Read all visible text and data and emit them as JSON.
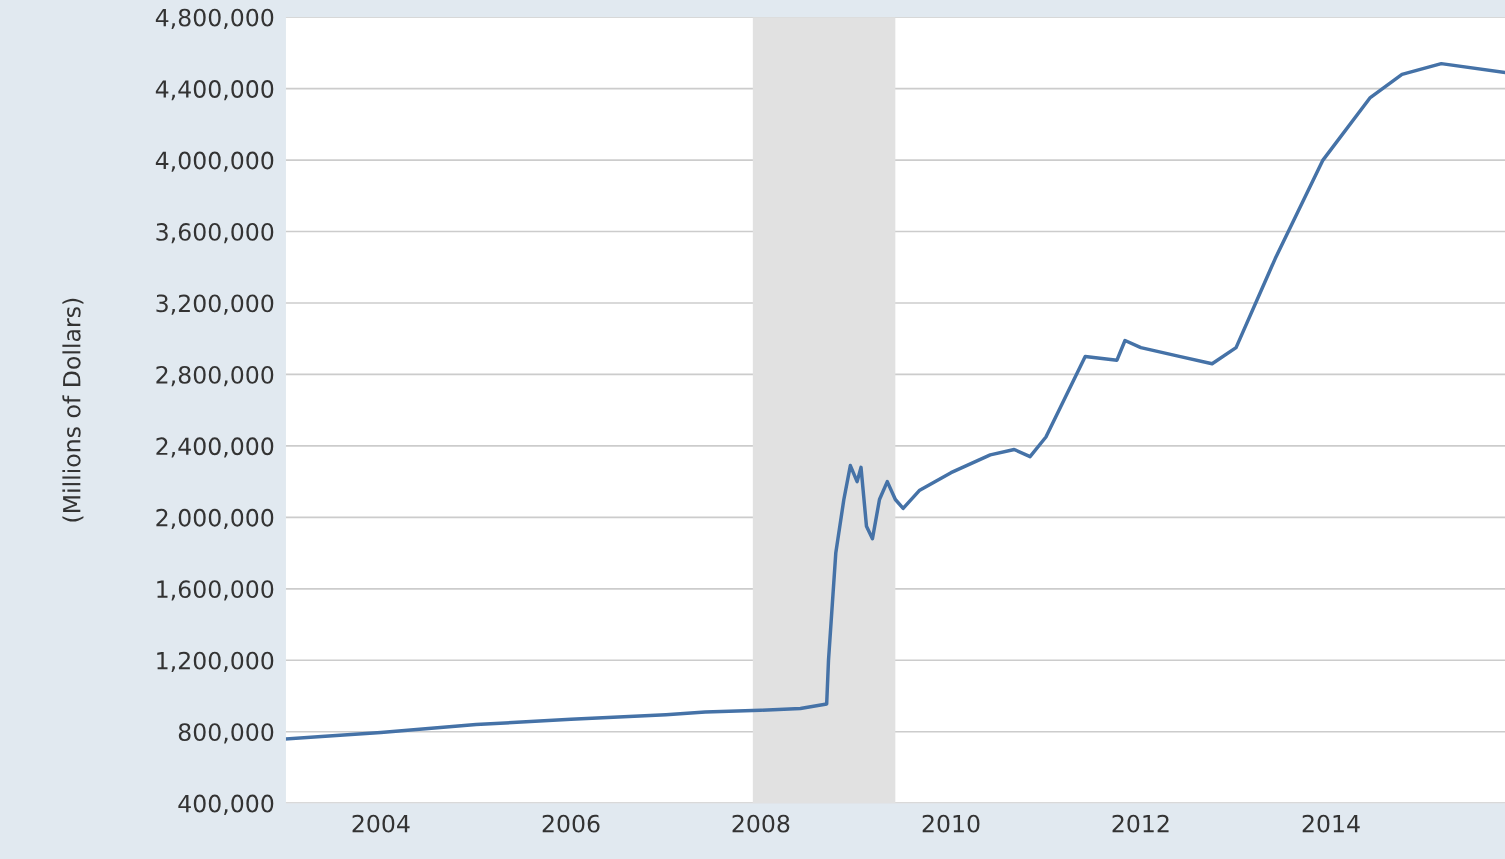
{
  "chart_data": {
    "type": "line",
    "ylabel": "(Millions of Dollars)",
    "x": [
      "2003-01",
      "2003-06",
      "2004-01",
      "2005-01",
      "2006-01",
      "2007-01",
      "2007-06",
      "2008-01",
      "2008-06",
      "2008-09-10",
      "2008-09-17",
      "2008-10-15",
      "2008-11-15",
      "2008-12-10",
      "2009-01-05",
      "2009-01-20",
      "2009-02-10",
      "2009-03-05",
      "2009-04-01",
      "2009-05-01",
      "2009-06-01",
      "2009-07-01",
      "2009-09-01",
      "2010-01",
      "2010-06",
      "2010-09",
      "2010-11",
      "2011-01",
      "2011-06",
      "2011-10",
      "2011-11",
      "2012-01",
      "2012-06",
      "2012-10",
      "2013-01",
      "2013-06",
      "2013-12",
      "2014-06",
      "2014-10",
      "2015-03",
      "2015-11"
    ],
    "series": [
      {
        "color": "#4572a7",
        "values": [
          760000,
          775000,
          795000,
          840000,
          870000,
          895000,
          910000,
          920000,
          930000,
          955000,
          1200000,
          1800000,
          2100000,
          2290000,
          2200000,
          2280000,
          1950000,
          1880000,
          2100000,
          2200000,
          2100000,
          2050000,
          2150000,
          2250000,
          2350000,
          2380000,
          2340000,
          2450000,
          2900000,
          2880000,
          2990000,
          2950000,
          2900000,
          2860000,
          2950000,
          3450000,
          4000000,
          4350000,
          4480000,
          4540000,
          4490000
        ]
      }
    ],
    "xlim": [
      "2003-01",
      "2015-11"
    ],
    "xticks": [
      "2004",
      "2006",
      "2008",
      "2010",
      "2012",
      "2014"
    ],
    "ylim": [
      400000,
      4800000
    ],
    "yticks": [
      {
        "value": 400000,
        "label": "400,000"
      },
      {
        "value": 800000,
        "label": "800,000"
      },
      {
        "value": 1200000,
        "label": "1,200,000"
      },
      {
        "value": 1600000,
        "label": "1,600,000"
      },
      {
        "value": 2000000,
        "label": "2,000,000"
      },
      {
        "value": 2400000,
        "label": "2,400,000"
      },
      {
        "value": 2800000,
        "label": "2,800,000"
      },
      {
        "value": 3200000,
        "label": "3,200,000"
      },
      {
        "value": 3600000,
        "label": "3,600,000"
      },
      {
        "value": 4000000,
        "label": "4,000,000"
      },
      {
        "value": 4400000,
        "label": "4,400,000"
      },
      {
        "value": 4800000,
        "label": "4,800,000"
      }
    ],
    "bands": [
      {
        "axis": "x",
        "from": "2007-12",
        "to": "2009-06",
        "color": "#e1e1e1"
      }
    ],
    "grid": "y",
    "legend": false
  }
}
